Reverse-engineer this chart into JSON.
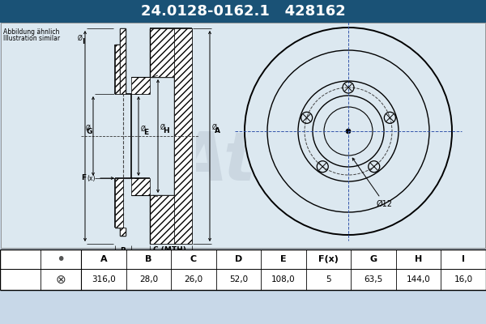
{
  "title_part1": "24.0128-0162.1",
  "title_part2": "428162",
  "header_bg": "#1a5276",
  "header_text_color": "#ffffff",
  "bg_color": "#c8d8e8",
  "diagram_bg": "#dce8f0",
  "table_bg": "#ffffff",
  "table_header": [
    "A",
    "B",
    "C",
    "D",
    "E",
    "F(x)",
    "G",
    "H",
    "I"
  ],
  "table_values": [
    "316,0",
    "28,0",
    "26,0",
    "52,0",
    "108,0",
    "5",
    "63,5",
    "144,0",
    "16,0"
  ],
  "note_line1": "Abbildung ähnlich",
  "note_line2": "Illustration similar",
  "dim_label": "Ø12",
  "watermark": "Ate"
}
